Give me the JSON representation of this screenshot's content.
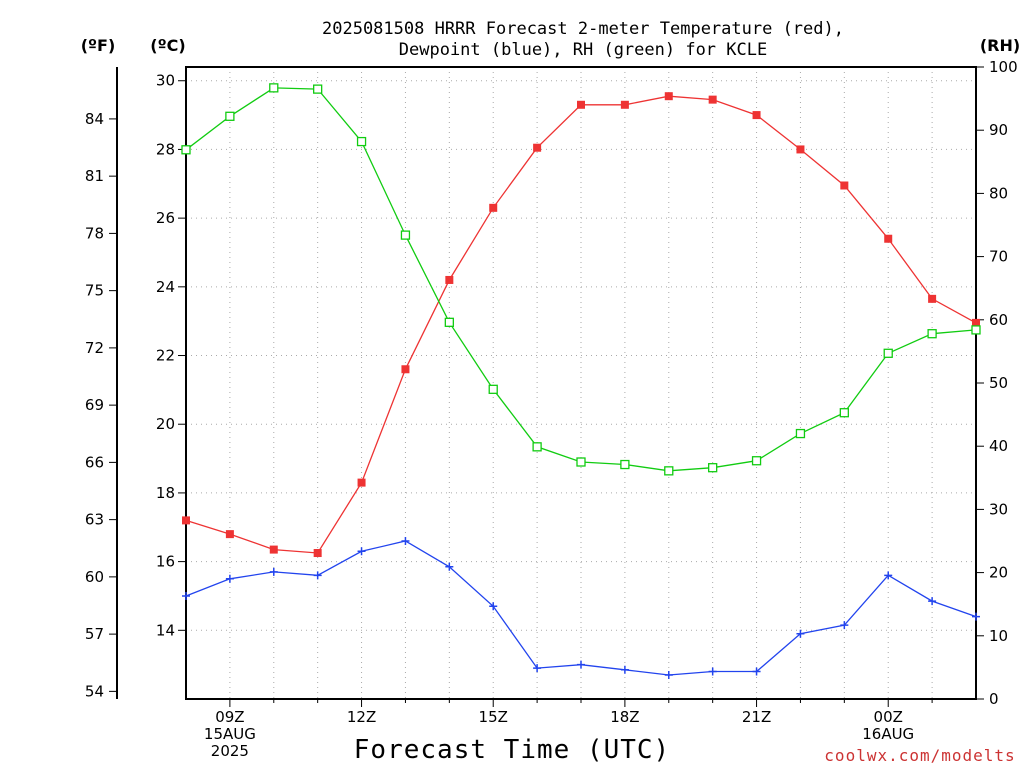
{
  "chart_data": {
    "type": "line",
    "title_lines": [
      "2025081508 HRRR Forecast 2-meter Temperature (red),",
      "Dewpoint (blue), RH (green) for KCLE"
    ],
    "xlabel": "Forecast Time (UTC)",
    "credit": "coolwx.com/modelts",
    "units": {
      "left_f": "(ºF)",
      "left_c": "(ºC)",
      "right": "(RH)"
    },
    "x": [
      8,
      9,
      10,
      11,
      12,
      13,
      14,
      15,
      16,
      17,
      18,
      19,
      20,
      21,
      22,
      23,
      24,
      25,
      26
    ],
    "xlim": [
      8,
      26
    ],
    "x_ticks": [
      {
        "x": 9,
        "lines": [
          "09Z",
          "15AUG",
          "2025"
        ]
      },
      {
        "x": 12,
        "lines": [
          "12Z"
        ]
      },
      {
        "x": 15,
        "lines": [
          "15Z"
        ]
      },
      {
        "x": 18,
        "lines": [
          "18Z"
        ]
      },
      {
        "x": 21,
        "lines": [
          "21Z"
        ]
      },
      {
        "x": 24,
        "lines": [
          "00Z",
          "16AUG"
        ]
      }
    ],
    "y_celsius": {
      "lim": [
        12,
        30.4
      ],
      "ticks": [
        "14",
        "16",
        "18",
        "20",
        "22",
        "24",
        "26",
        "28",
        "30"
      ]
    },
    "y_fahrenheit": {
      "ticks": [
        "54",
        "57",
        "60",
        "63",
        "66",
        "69",
        "72",
        "75",
        "78",
        "81",
        "84"
      ]
    },
    "y_rh": {
      "lim": [
        0,
        100
      ],
      "ticks": [
        "0",
        "10",
        "20",
        "30",
        "40",
        "50",
        "60",
        "70",
        "80",
        "90",
        "100"
      ]
    },
    "grid": true,
    "series": [
      {
        "axis": "celsius",
        "color": "#ee3333",
        "marker": "filled-square",
        "values": [
          17.2,
          16.8,
          16.35,
          16.25,
          18.3,
          21.6,
          24.2,
          26.3,
          28.05,
          29.3,
          29.3,
          29.55,
          29.45,
          29.0,
          28.0,
          26.95,
          25.4,
          23.65,
          22.95
        ]
      },
      {
        "axis": "celsius",
        "color": "#2244ee",
        "marker": "plus",
        "values": [
          15.0,
          15.5,
          15.7,
          15.6,
          16.3,
          16.6,
          15.85,
          14.7,
          12.9,
          13.0,
          12.85,
          12.7,
          12.8,
          12.8,
          13.9,
          14.15,
          15.6,
          14.85,
          14.4
        ]
      },
      {
        "axis": "rh",
        "color": "#11cc11",
        "marker": "open-square",
        "values": [
          86.9,
          92.2,
          96.7,
          96.5,
          88.2,
          73.4,
          59.6,
          49.0,
          39.9,
          37.5,
          37.1,
          36.1,
          36.6,
          37.7,
          42.0,
          45.3,
          54.7,
          57.8,
          58.4
        ]
      }
    ]
  }
}
